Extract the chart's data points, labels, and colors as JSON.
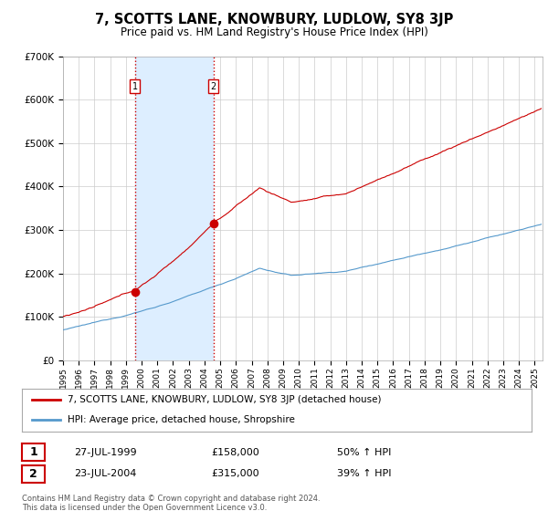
{
  "title": "7, SCOTTS LANE, KNOWBURY, LUDLOW, SY8 3JP",
  "subtitle": "Price paid vs. HM Land Registry's House Price Index (HPI)",
  "legend_line1": "7, SCOTTS LANE, KNOWBURY, LUDLOW, SY8 3JP (detached house)",
  "legend_line2": "HPI: Average price, detached house, Shropshire",
  "sale1_date": "27-JUL-1999",
  "sale1_price": "£158,000",
  "sale1_hpi": "50% ↑ HPI",
  "sale1_year": 1999.57,
  "sale1_value": 158000,
  "sale2_date": "23-JUL-2004",
  "sale2_price": "£315,000",
  "sale2_hpi": "39% ↑ HPI",
  "sale2_year": 2004.57,
  "sale2_value": 315000,
  "footer": "Contains HM Land Registry data © Crown copyright and database right 2024.\nThis data is licensed under the Open Government Licence v3.0.",
  "red_color": "#cc0000",
  "blue_color": "#5599cc",
  "shade_color": "#ddeeff",
  "grid_color": "#cccccc",
  "background_color": "#ffffff",
  "ylim": [
    0,
    700000
  ],
  "xlim_start": 1995.0,
  "xlim_end": 2025.5
}
